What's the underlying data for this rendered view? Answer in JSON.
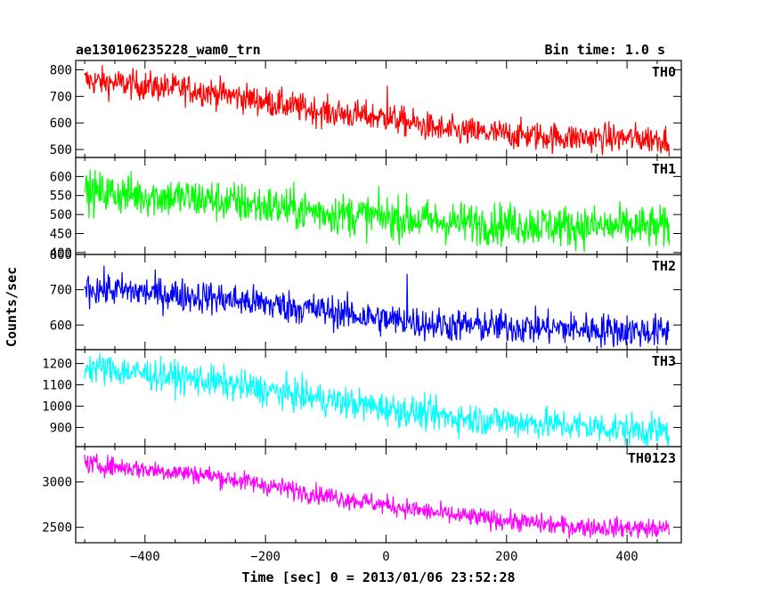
{
  "header": {
    "left_title": "ae130106235228_wam0_trn",
    "right_title": "Bin time: 1.0 s"
  },
  "axes": {
    "xlabel": "Time [sec] 0 = 2013/01/06 23:52:28",
    "ylabel": "Counts/sec",
    "xlim": [
      -515,
      490
    ],
    "xticks": [
      -400,
      -200,
      0,
      200,
      400
    ]
  },
  "chart_data": [
    {
      "type": "line",
      "name": "TH0",
      "color": "#ff0000",
      "ylim": [
        470,
        835
      ],
      "yticks": [
        500,
        600,
        700,
        800
      ],
      "x_range": [
        -500,
        470
      ],
      "trend": {
        "x": [
          -500,
          -300,
          -100,
          0,
          100,
          300,
          470
        ],
        "y": [
          760,
          720,
          640,
          620,
          570,
          545,
          540
        ]
      },
      "noise": 28,
      "spikes": [
        {
          "x": 2,
          "y": 740
        }
      ]
    },
    {
      "type": "line",
      "name": "TH1",
      "color": "#00ff00",
      "ylim": [
        395,
        650
      ],
      "yticks": [
        400,
        450,
        500,
        550,
        600
      ],
      "x_range": [
        -500,
        470
      ],
      "trend": {
        "x": [
          -500,
          -300,
          -100,
          100,
          300,
          470
        ],
        "y": [
          560,
          540,
          505,
          480,
          470,
          465
        ]
      },
      "noise": 28,
      "spikes": []
    },
    {
      "type": "line",
      "name": "TH2",
      "color": "#0000ff",
      "ylim": [
        530,
        800
      ],
      "yticks": [
        600,
        700,
        800
      ],
      "x_range": [
        -500,
        470
      ],
      "trend": {
        "x": [
          -500,
          -300,
          -100,
          0,
          100,
          300,
          470
        ],
        "y": [
          705,
          680,
          640,
          615,
          600,
          590,
          580
        ]
      },
      "noise": 24,
      "spikes": [
        {
          "x": 35,
          "y": 745
        }
      ]
    },
    {
      "type": "line",
      "name": "TH3",
      "color": "#00ffff",
      "ylim": [
        810,
        1265
      ],
      "yticks": [
        900,
        1000,
        1100,
        1200
      ],
      "x_range": [
        -500,
        470
      ],
      "trend": {
        "x": [
          -500,
          -300,
          -100,
          100,
          300,
          470
        ],
        "y": [
          1185,
          1120,
          1030,
          950,
          910,
          880
        ]
      },
      "noise": 38,
      "spikes": []
    },
    {
      "type": "line",
      "name": "TH0123",
      "color": "#ff00ff",
      "ylim": [
        2330,
        3390
      ],
      "yticks": [
        2500,
        3000
      ],
      "x_range": [
        -500,
        470
      ],
      "trend": {
        "x": [
          -500,
          -300,
          -100,
          100,
          300,
          470
        ],
        "y": [
          3200,
          3080,
          2850,
          2640,
          2510,
          2480
        ]
      },
      "noise": 55,
      "spikes": []
    }
  ]
}
